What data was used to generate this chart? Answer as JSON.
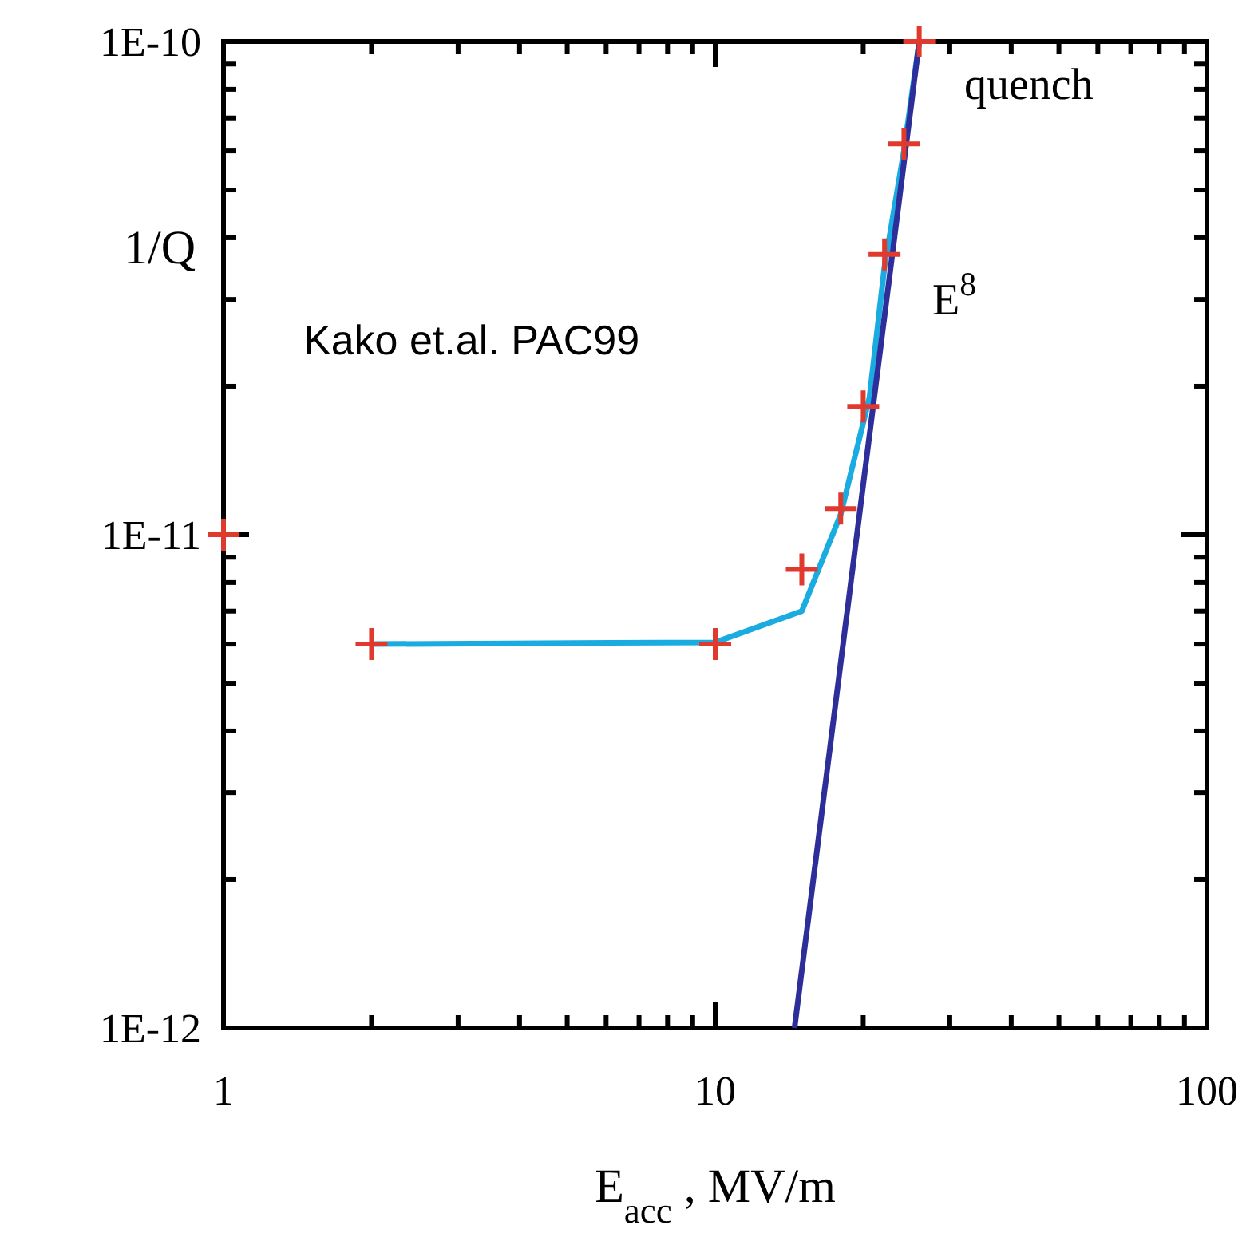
{
  "chart_data": {
    "type": "scatter",
    "xlabel": "E$_{acc}$ , MV/m",
    "ylabel": "1/Q",
    "log": "xy",
    "grid": false,
    "xlim": [
      1,
      100
    ],
    "ylim": [
      1e-12,
      1e-10
    ],
    "xticks": [
      {
        "value": 1,
        "label": "1"
      },
      {
        "value": 2,
        "label": null
      },
      {
        "value": 3,
        "label": null
      },
      {
        "value": 4,
        "label": null
      },
      {
        "value": 5,
        "label": null
      },
      {
        "value": 6,
        "label": null
      },
      {
        "value": 7,
        "label": null
      },
      {
        "value": 8,
        "label": null
      },
      {
        "value": 9,
        "label": null
      },
      {
        "value": 10,
        "label": "10"
      },
      {
        "value": 20,
        "label": null
      },
      {
        "value": 30,
        "label": null
      },
      {
        "value": 40,
        "label": null
      },
      {
        "value": 50,
        "label": null
      },
      {
        "value": 60,
        "label": null
      },
      {
        "value": 70,
        "label": null
      },
      {
        "value": 80,
        "label": null
      },
      {
        "value": 90,
        "label": null
      },
      {
        "value": 100,
        "label": "100"
      }
    ],
    "yticks": [
      {
        "value": 1e-12,
        "label": "1E-12"
      },
      {
        "value": 2e-12,
        "label": null
      },
      {
        "value": 3e-12,
        "label": null
      },
      {
        "value": 4e-12,
        "label": null
      },
      {
        "value": 5e-12,
        "label": null
      },
      {
        "value": 6e-12,
        "label": null
      },
      {
        "value": 7e-12,
        "label": null
      },
      {
        "value": 8e-12,
        "label": null
      },
      {
        "value": 9e-12,
        "label": null
      },
      {
        "value": 1e-11,
        "label": "1E-11"
      },
      {
        "value": 2e-11,
        "label": null
      },
      {
        "value": 3e-11,
        "label": null
      },
      {
        "value": 4e-11,
        "label": null
      },
      {
        "value": 5e-11,
        "label": null
      },
      {
        "value": 6e-11,
        "label": null
      },
      {
        "value": 7e-11,
        "label": null
      },
      {
        "value": 8e-11,
        "label": null
      },
      {
        "value": 9e-11,
        "label": null
      },
      {
        "value": 1e-10,
        "label": "1E-10"
      }
    ],
    "series": [
      {
        "type": "line",
        "color": "#1aabe0",
        "marker": "none",
        "line_style": "solid",
        "x": [
          2,
          10,
          15,
          18,
          20.6,
          22.1,
          24.2,
          26
        ],
        "values": [
          6e-12,
          6.05e-12,
          7e-12,
          1.1e-11,
          1.9e-11,
          3.5e-11,
          6e-11,
          1e-10
        ]
      },
      {
        "type": "line",
        "color": "#2e2e9a",
        "marker": "none",
        "line_style": "solid",
        "x": [
          14.5,
          26
        ],
        "values": [
          1e-12,
          1e-10
        ]
      },
      {
        "color": "#e03a2e",
        "marker": "cross",
        "x": [
          1,
          2,
          10,
          15,
          18,
          20,
          22.1,
          24.2,
          26
        ],
        "values": [
          1e-11,
          6e-12,
          6e-12,
          8.5e-12,
          1.13e-11,
          1.82e-11,
          3.7e-11,
          6.2e-11,
          1e-10
        ]
      }
    ],
    "annotations": [
      "Kako et.al. PAC99",
      "E$^{8}$",
      "quench"
    ]
  }
}
